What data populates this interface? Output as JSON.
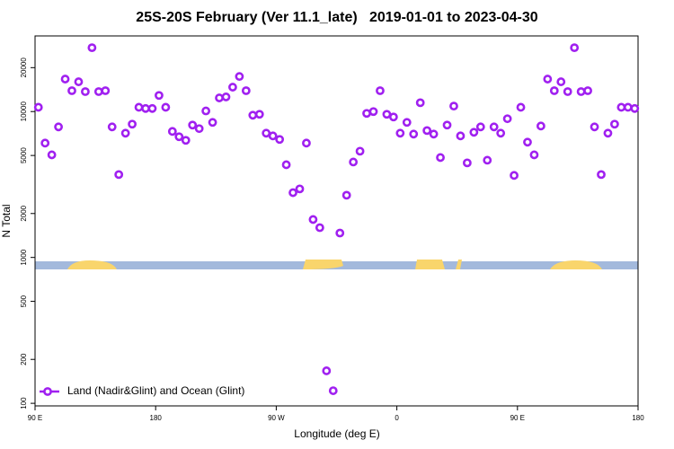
{
  "chart_data": {
    "type": "scatter",
    "title": "25S-20S February (Ver 11.1_late)   2019-01-01 to 2023-04-30",
    "xlabel": "Longitude (deg E)",
    "ylabel": "N Total",
    "log_y": true,
    "legend": "lower left",
    "xlim": [
      90,
      540
    ],
    "xticks": [
      {
        "value": 90,
        "label": "90 E"
      },
      180,
      {
        "value": 270,
        "label": "90 W"
      },
      {
        "value": 360,
        "label": "0"
      },
      {
        "value": 450,
        "label": "90 E"
      },
      {
        "value": 540,
        "label": "180"
      }
    ],
    "ylim": [
      96,
      33000
    ],
    "yticks": [
      100,
      200,
      500,
      1000,
      2000,
      5000,
      10000,
      20000
    ],
    "series": [
      {
        "name": "Land (Nadir&Glint) and Ocean (Glint)",
        "color": "#a020f0",
        "x": [
          92.5,
          97.5,
          102.5,
          107.5,
          112.5,
          117.5,
          122.5,
          127.5,
          132.5,
          137.5,
          142.5,
          147.5,
          152.5,
          157.5,
          162.5,
          167.5,
          172.5,
          177.5,
          182.5,
          187.5,
          192.5,
          197.5,
          202.5,
          207.5,
          212.5,
          217.5,
          222.5,
          227.5,
          232.5,
          237.5,
          242.5,
          247.5,
          252.5,
          257.5,
          262.5,
          267.5,
          272.5,
          277.5,
          282.5,
          287.5,
          292.5,
          297.5,
          302.5,
          307.5,
          312.5,
          317.5,
          322.5,
          327.5,
          332.5,
          337.5,
          342.5,
          347.5,
          352.5,
          357.5,
          362.5,
          367.5,
          372.5,
          377.5,
          382.5,
          387.5,
          392.5,
          397.5,
          402.5,
          407.5,
          412.5,
          417.5,
          422.5,
          427.5,
          432.5,
          437.5,
          442.5,
          447.5,
          452.5,
          457.5,
          462.5,
          467.5,
          472.5,
          477.5,
          482.5,
          487.5,
          492.5,
          497.5,
          502.5,
          507.5,
          512.5,
          517.5,
          522.5,
          527.5,
          532.5,
          537.5
        ],
        "values": [
          10700,
          6080,
          5050,
          7850,
          16700,
          13900,
          16000,
          13700,
          27400,
          13700,
          13900,
          7850,
          3700,
          7110,
          8200,
          10700,
          10500,
          10500,
          12900,
          10700,
          7310,
          6720,
          6350,
          8080,
          7640,
          10100,
          8430,
          12400,
          12600,
          14700,
          17400,
          13900,
          9440,
          9580,
          7110,
          6810,
          6440,
          4320,
          2780,
          2950,
          6080,
          1820,
          1600,
          167,
          122,
          1470,
          2670,
          4510,
          5350,
          9720,
          10000,
          13900,
          9580,
          9180,
          7110,
          8430,
          7010,
          11500,
          7410,
          7010,
          4840,
          8080,
          10900,
          6810,
          4450,
          7210,
          7850,
          4640,
          7850,
          7110,
          8930,
          3650,
          10700,
          6170,
          5050,
          7960,
          16700,
          13900,
          16000,
          13700,
          27400,
          13700,
          13900,
          7850,
          3700,
          7110,
          8200,
          10700,
          10700,
          10500
        ]
      }
    ]
  }
}
